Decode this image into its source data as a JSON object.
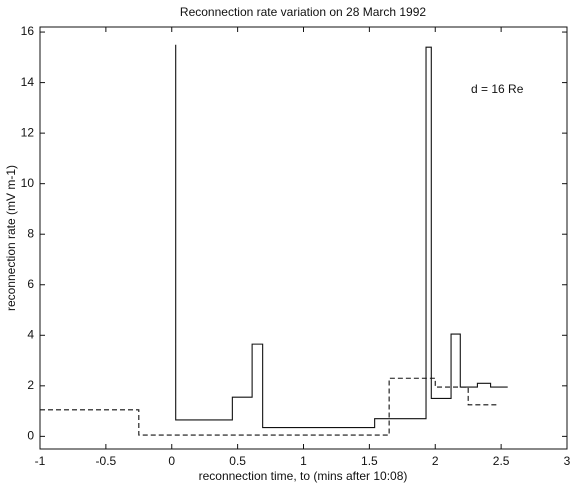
{
  "chart_data": {
    "type": "line",
    "drawstyle": "steps-post",
    "title": "Reconnection rate variation on 28 March 1992",
    "xlabel": "reconnection time, to (mins after 10:08)",
    "ylabel": "reconnection rate (mV m-1)",
    "annotation": "d = 16 Re",
    "xlim": [
      -1,
      3
    ],
    "ylim": [
      -0.5,
      16.2
    ],
    "xticks": [
      -1,
      -0.5,
      0,
      0.5,
      1,
      1.5,
      2,
      2.5,
      3
    ],
    "yticks": [
      0,
      2,
      4,
      6,
      8,
      10,
      12,
      14,
      16
    ],
    "grid": false,
    "series": [
      {
        "color": "#111111",
        "dash": "solid",
        "x": [
          0.03,
          0.03,
          0.46,
          0.61,
          0.69,
          1.54,
          1.93,
          1.97,
          2.12,
          2.19,
          2.32,
          2.42,
          2.55
        ],
        "values": [
          15.5,
          0.65,
          1.55,
          3.65,
          0.35,
          0.7,
          15.4,
          1.5,
          4.05,
          1.95,
          2.1,
          1.95,
          1.95
        ]
      },
      {
        "color": "#111111",
        "dash": "dashed",
        "x": [
          -1,
          -0.25,
          1.65,
          2.0,
          2.25,
          2.48
        ],
        "values": [
          1.05,
          0.05,
          2.3,
          1.95,
          1.25,
          1.25
        ]
      }
    ]
  }
}
